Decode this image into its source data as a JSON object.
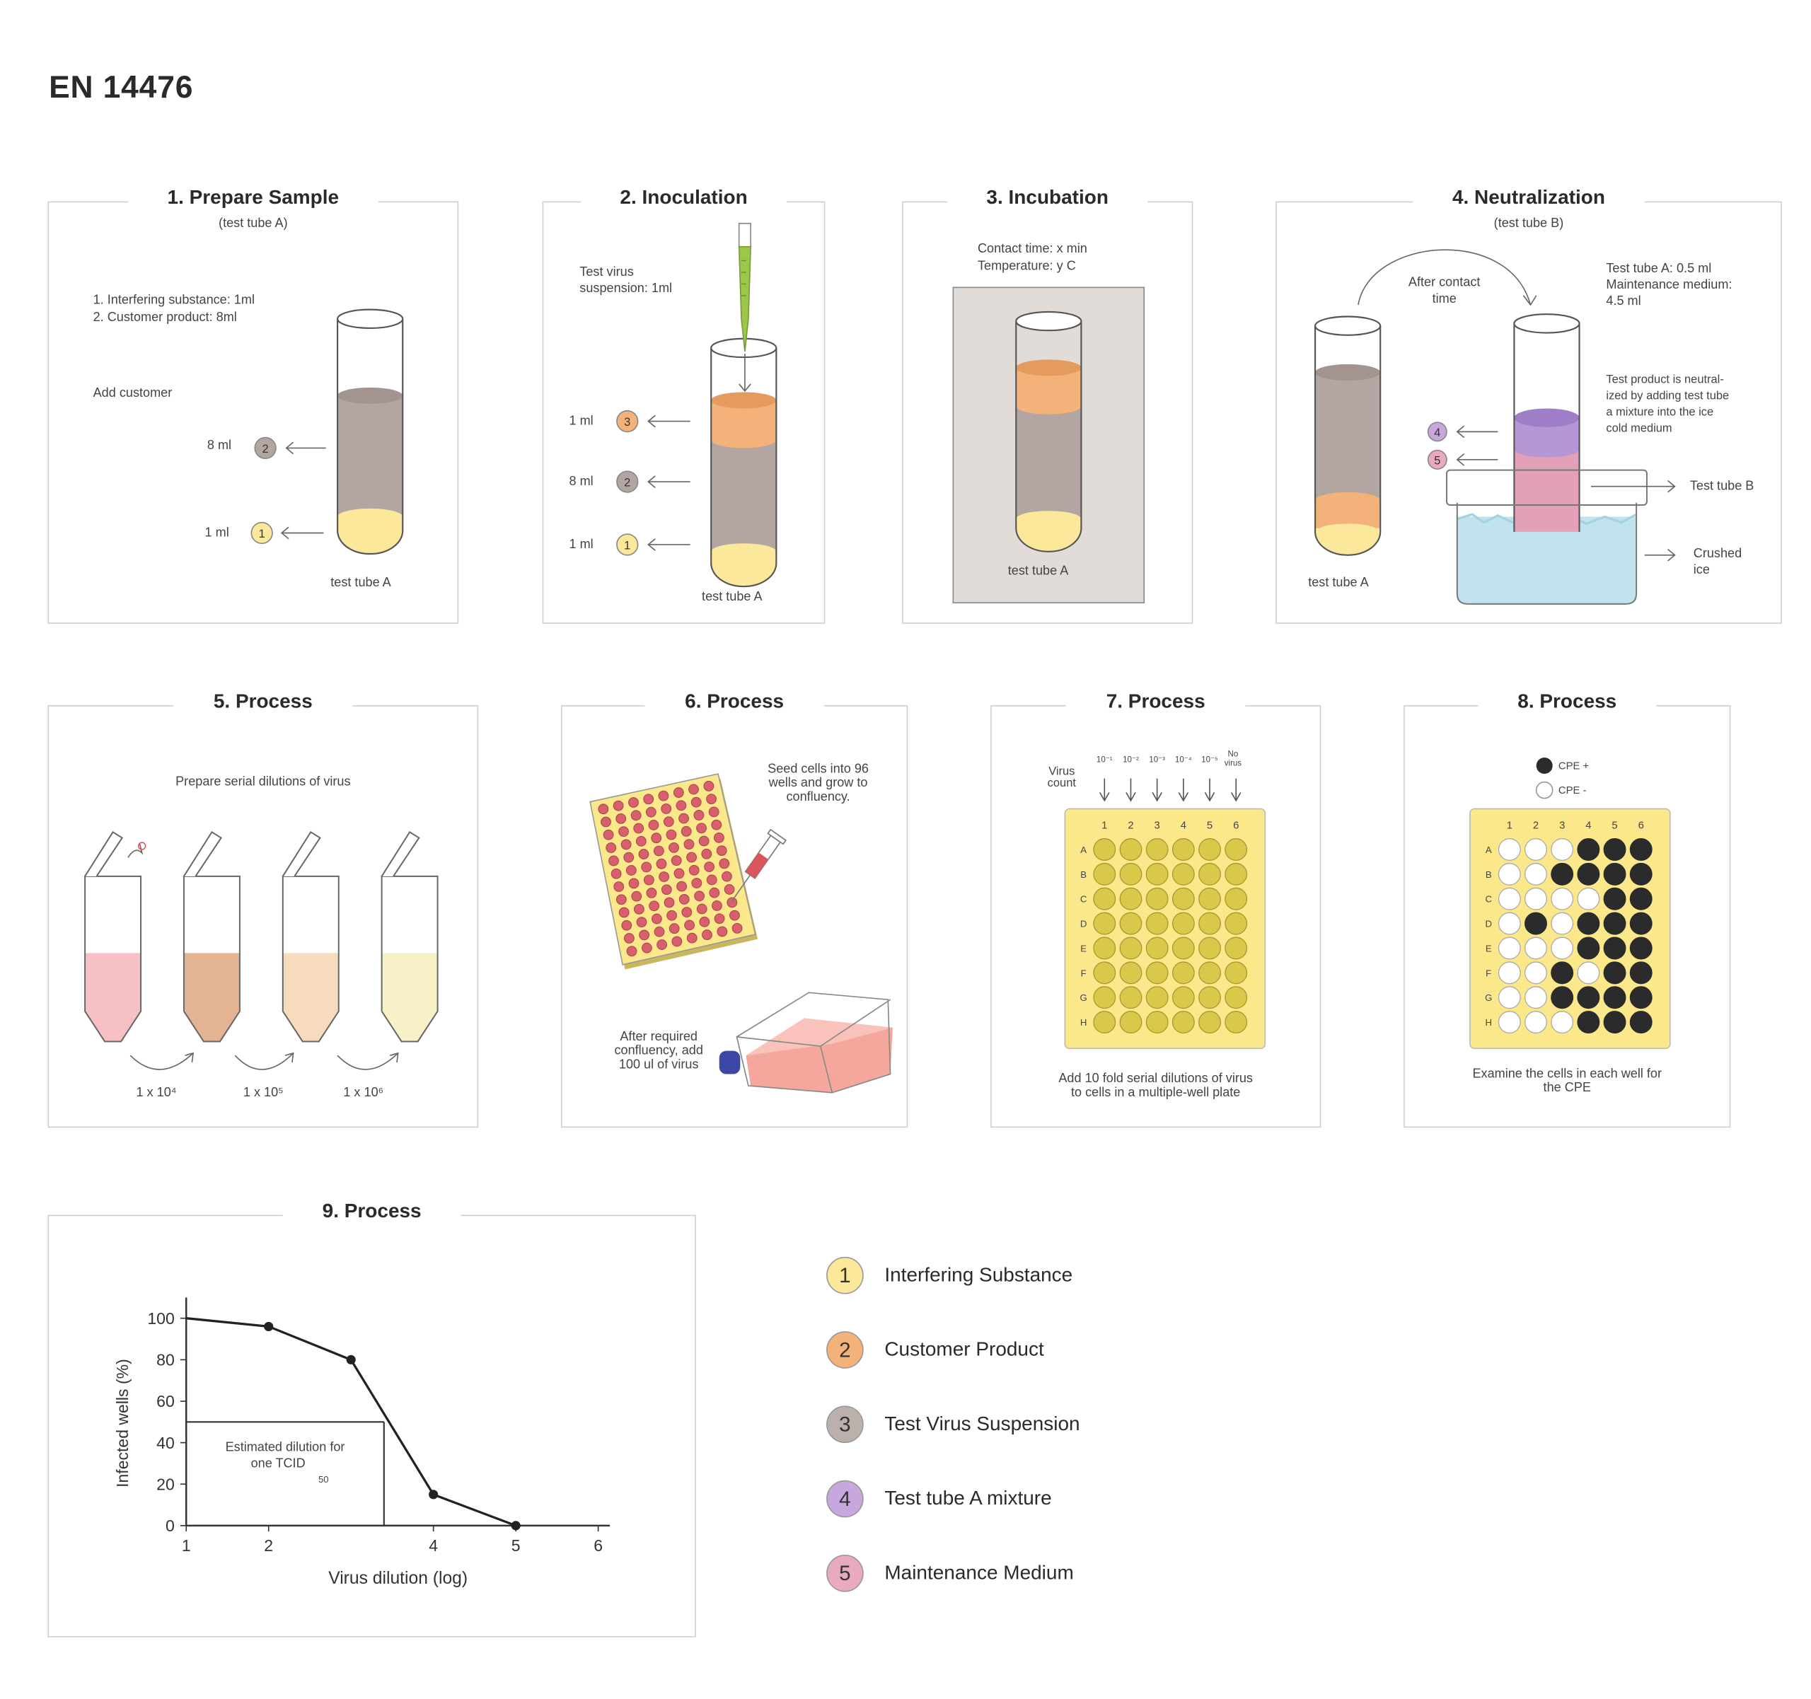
{
  "title": "EN 14476",
  "panel1": {
    "title": "1. Prepare Sample",
    "subtitle": "(test tube A)",
    "list1": "1. Interfering substance: 1ml",
    "list2": "2. Customer product: 8ml",
    "add_text": "Add customer",
    "vol_upper": "8 ml",
    "vol_lower": "1 ml",
    "badge_upper": "2",
    "badge_lower": "1",
    "tube_label": "test tube A"
  },
  "panel2": {
    "title": "2. Inoculation",
    "suspension_line1": "Test virus",
    "suspension_line2": "suspension: 1ml",
    "vol_top": "1 ml",
    "vol_mid": "8 ml",
    "vol_bot": "1 ml",
    "badge_top": "3",
    "badge_mid": "2",
    "badge_bot": "1",
    "tube_label": "test tube A"
  },
  "panel3": {
    "title": "3. Incubation",
    "contact": "Contact time: x min",
    "temperature": "Temperature: y C",
    "tube_label": "test tube A"
  },
  "panel4": {
    "title": "4. Neutralization",
    "subtitle": "(test tube B)",
    "after_line1": "After contact",
    "after_line2": "time",
    "info1": "Test tube A: 0.5 ml",
    "info2": "Maintenance medium:",
    "info3": "4.5 ml",
    "neut1": "Test product is neutral-",
    "neut2": "ized by adding test tube",
    "neut3": "a mixture into the ice",
    "neut4": "cold medium",
    "badge_top": "4",
    "badge_bot": "5",
    "tube_b_label": "Test tube B",
    "ice_line1": "Crushed",
    "ice_line2": "ice",
    "tube_a_label": "test tube A"
  },
  "panel5": {
    "title": "5. Process",
    "caption": "Prepare serial dilutions of virus",
    "dilutions": [
      "1 x 10⁴",
      "1 x 10⁵",
      "1 x 10⁶"
    ]
  },
  "panel6": {
    "title": "6. Process",
    "seed1": "Seed cells into 96",
    "seed2": "wells and grow to",
    "seed3": "confluency.",
    "after1": "After required",
    "after2": "confluency, add",
    "after3": "100 ul of virus"
  },
  "panel7": {
    "title": "7. Process",
    "virus_count_1": "Virus",
    "virus_count_2": "count",
    "dilution_labels": [
      "10⁻¹",
      "10⁻²",
      "10⁻³",
      "10⁻⁴",
      "10⁻⁵"
    ],
    "no_virus_1": "No",
    "no_virus_2": "virus",
    "columns": [
      "1",
      "2",
      "3",
      "4",
      "5",
      "6"
    ],
    "rows": [
      "A",
      "B",
      "C",
      "D",
      "E",
      "F",
      "G",
      "H"
    ],
    "caption1": "Add 10 fold serial dilutions of virus",
    "caption2": "to cells in a multiple-well plate"
  },
  "panel8": {
    "title": "8. Process",
    "legend_pos": "CPE +",
    "legend_neg": "CPE -",
    "columns": [
      "1",
      "2",
      "3",
      "4",
      "5",
      "6"
    ],
    "rows": [
      "A",
      "B",
      "C",
      "D",
      "E",
      "F",
      "G",
      "H"
    ],
    "grid": [
      [
        0,
        0,
        0,
        1,
        1,
        1
      ],
      [
        0,
        0,
        1,
        1,
        1,
        1
      ],
      [
        0,
        0,
        0,
        0,
        1,
        1
      ],
      [
        0,
        1,
        0,
        1,
        1,
        1
      ],
      [
        0,
        0,
        0,
        1,
        1,
        1
      ],
      [
        0,
        0,
        1,
        0,
        1,
        1
      ],
      [
        0,
        0,
        1,
        1,
        1,
        1
      ],
      [
        0,
        0,
        0,
        1,
        1,
        1
      ]
    ],
    "caption1": "Examine the cells in each well for",
    "caption2": "the CPE"
  },
  "panel9": {
    "title": "9. Process",
    "annotation1": "Estimated dilution for",
    "annotation2": "one TCID",
    "annotation_sub": "50"
  },
  "chart_data": {
    "type": "line",
    "title": "",
    "xlabel": "Virus dilution (log)",
    "ylabel": "Infected wells (%)",
    "x_ticks": [
      1,
      2,
      4,
      5,
      6
    ],
    "y_ticks": [
      0,
      20,
      40,
      60,
      80,
      100
    ],
    "xlim": [
      1,
      6
    ],
    "ylim": [
      0,
      110
    ],
    "series": [
      {
        "x": [
          1,
          2,
          3,
          4,
          5
        ],
        "y": [
          100,
          96,
          80,
          15,
          0
        ],
        "markers_at": [
          2,
          3,
          4,
          5
        ]
      }
    ],
    "reference": {
      "y": 50,
      "x": 3.4
    },
    "grid": false
  },
  "legend": [
    {
      "num": "1",
      "label": "Interfering Substance",
      "color": "#fbe89a"
    },
    {
      "num": "2",
      "label": "Customer Product",
      "color": "#f2b27a"
    },
    {
      "num": "3",
      "label": "Test Virus Suspension",
      "color": "#bcb0ad"
    },
    {
      "num": "4",
      "label": "Test tube A mixture",
      "color": "#c7a7dd"
    },
    {
      "num": "5",
      "label": "Maintenance Medium",
      "color": "#e9a9bf"
    }
  ],
  "colors": {
    "yellow": "#fbe89a",
    "orange": "#f2b27a",
    "grey": "#b3a6a2",
    "purple": "#b596d6",
    "pink": "#e3a1b9",
    "ice": "#c2e3ee",
    "plate": "#fbe88a",
    "well": "#d9c84a"
  }
}
